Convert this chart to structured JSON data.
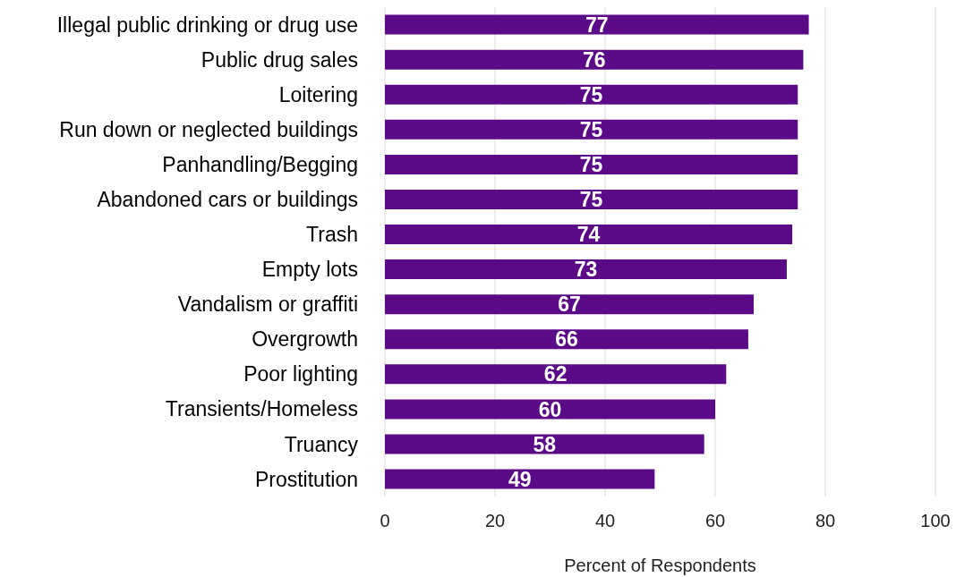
{
  "chart_data": {
    "type": "bar",
    "orientation": "horizontal",
    "xlabel": "Percent of Respondents",
    "categories": [
      "Illegal public drinking or drug use",
      "Public drug sales",
      "Loitering",
      "Run down or neglected buildings",
      "Panhandling/Begging",
      "Abandoned cars or buildings",
      "Trash",
      "Empty lots",
      "Vandalism or graffiti",
      "Overgrowth",
      "Poor lighting",
      "Transients/Homeless",
      "Truancy",
      "Prostitution"
    ],
    "values": [
      77,
      76,
      75,
      75,
      75,
      75,
      74,
      73,
      67,
      66,
      62,
      60,
      58,
      49
    ],
    "color": "#5b0a88",
    "xlim": [
      0,
      100
    ],
    "xticks": [
      0,
      20,
      40,
      60,
      80,
      100
    ],
    "grid": "x",
    "data_labels": true
  }
}
